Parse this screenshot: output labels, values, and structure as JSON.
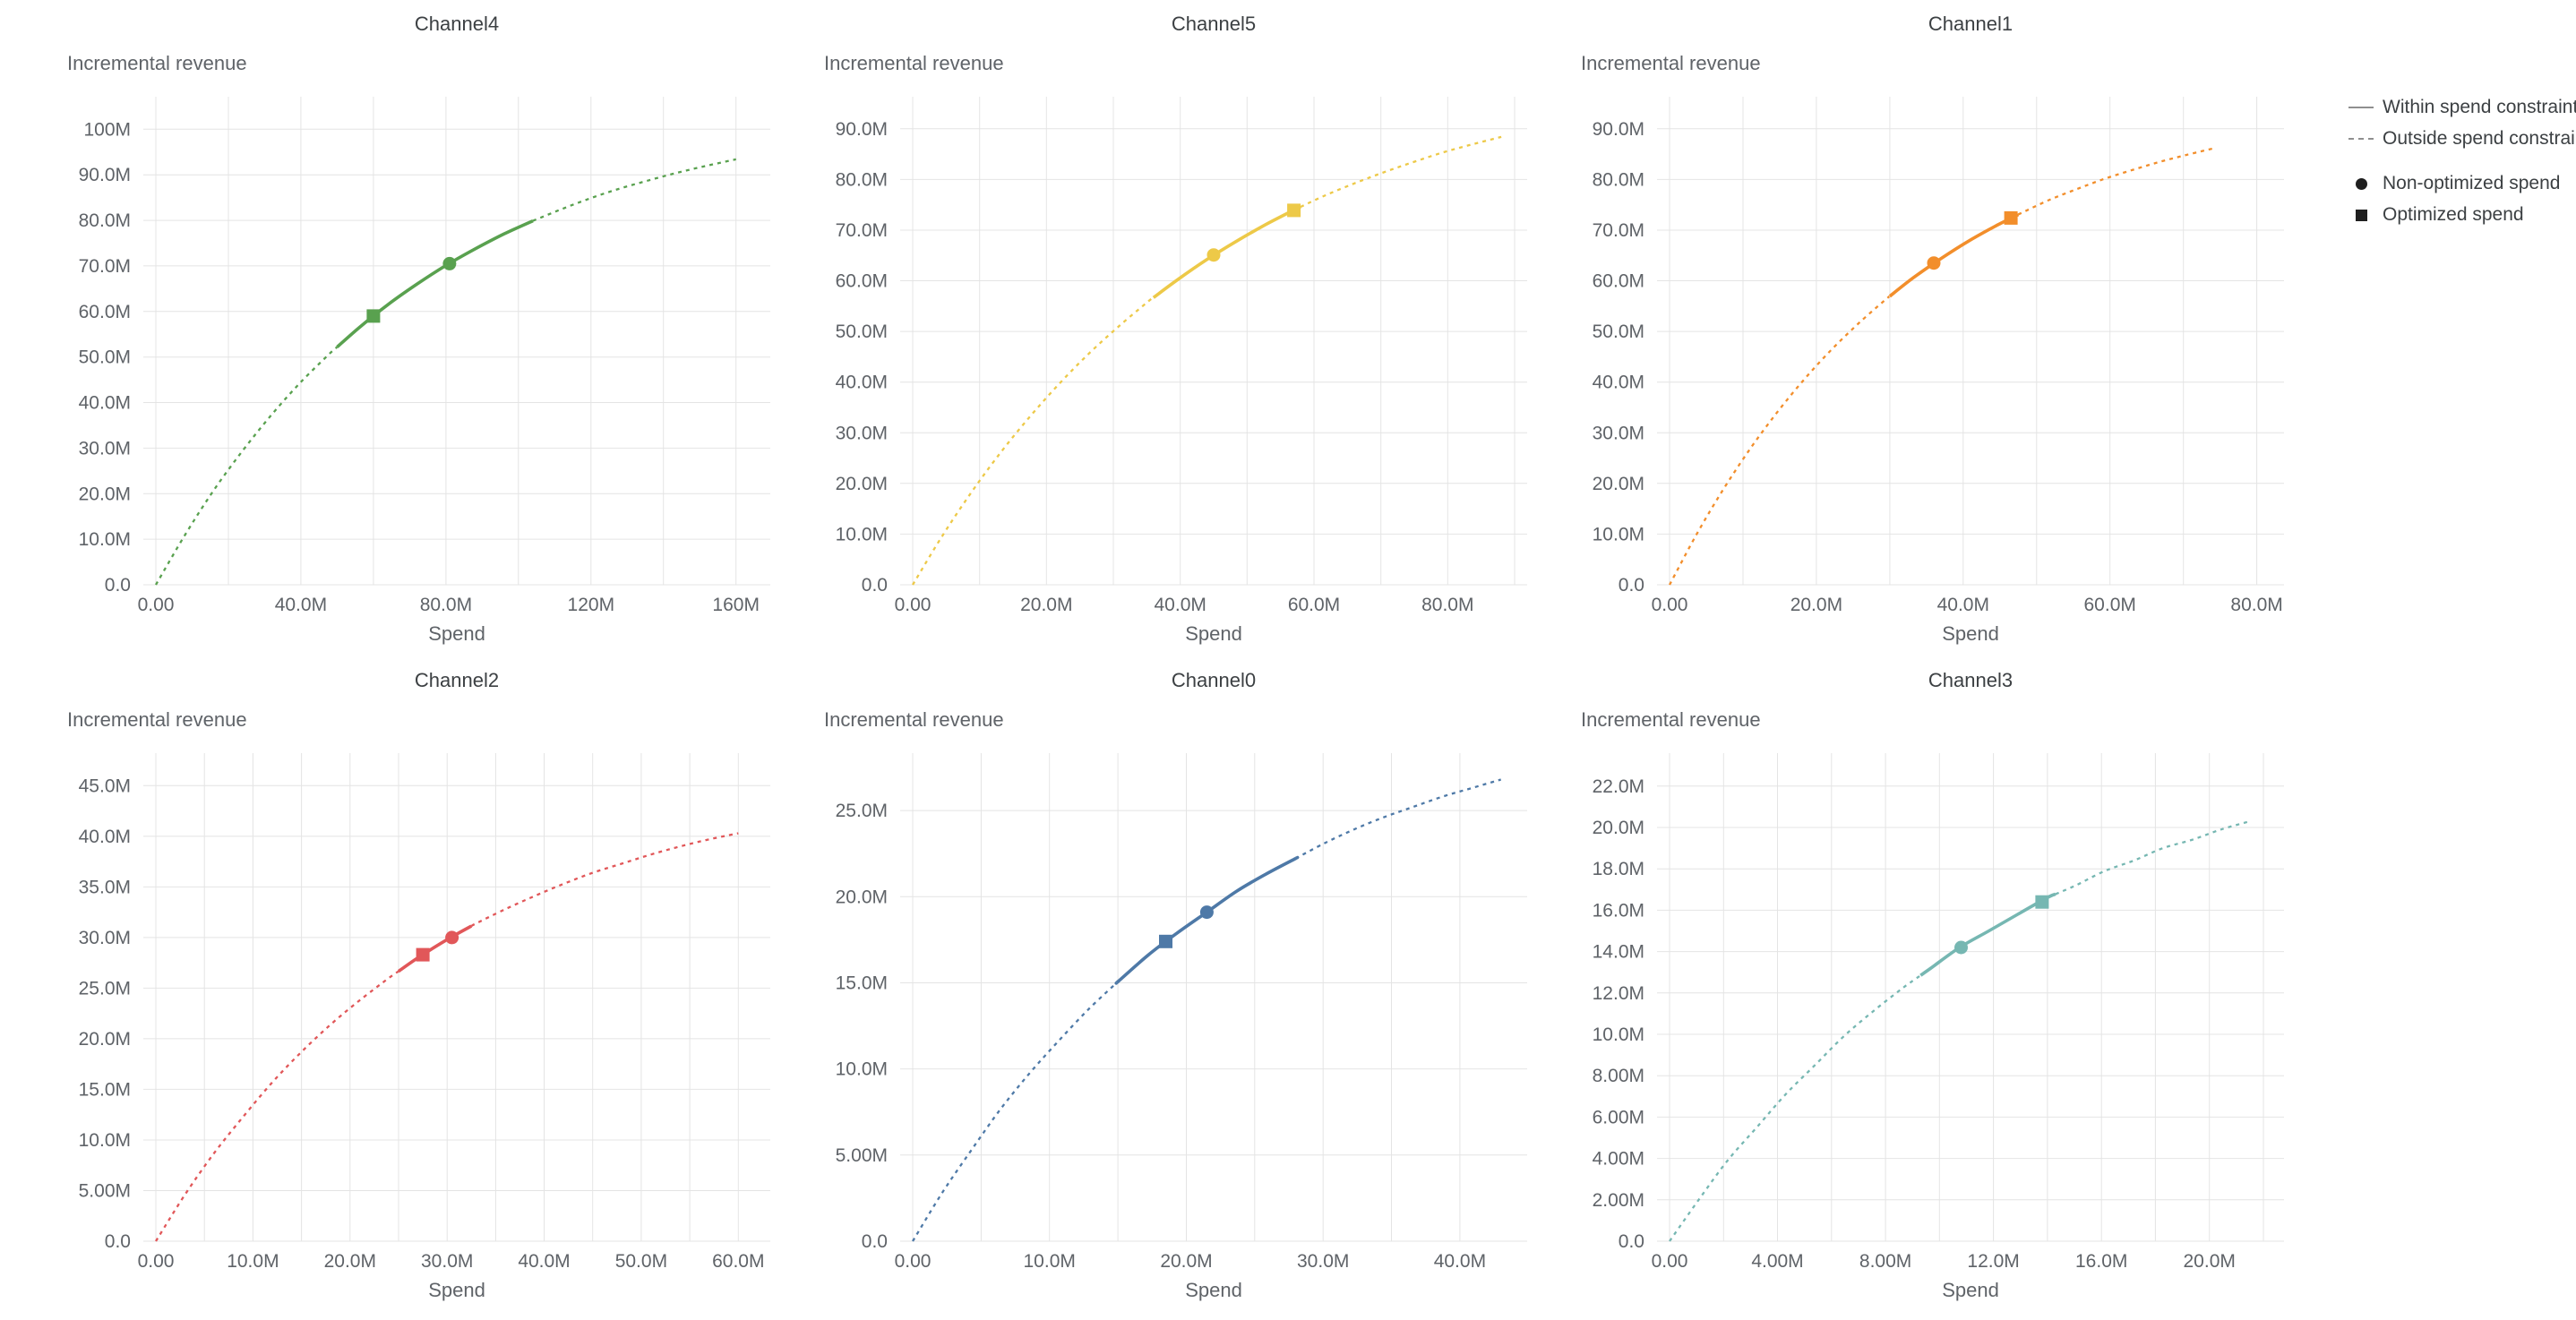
{
  "page": {
    "background": "#ffffff"
  },
  "legend": {
    "line_color": "#8f8f8f",
    "marker_color": "#1f1f1f",
    "text_color": "#3c4043",
    "items": [
      {
        "symbol": "line-solid",
        "label": "Within spend constraint"
      },
      {
        "symbol": "line-dashed",
        "label": "Outside spend constraint"
      },
      {
        "symbol": "circle",
        "label": "Non-optimized spend"
      },
      {
        "symbol": "square",
        "label": "Optimized spend"
      }
    ]
  },
  "chart_data": [
    {
      "type": "line",
      "title": "Channel4",
      "ylabel": "Incremental revenue",
      "xlabel": "Spend",
      "color": "#59a14f",
      "x_domain_max": 166,
      "y_domain_max": 104,
      "x_grid_step": 20,
      "x_ticks": [
        {
          "v": 0,
          "label": "0.00"
        },
        {
          "v": 40,
          "label": "40.0M"
        },
        {
          "v": 80,
          "label": "80.0M"
        },
        {
          "v": 120,
          "label": "120M"
        },
        {
          "v": 160,
          "label": "160M"
        }
      ],
      "y_ticks": [
        {
          "v": 0,
          "label": "0.0"
        },
        {
          "v": 10,
          "label": "10.0M"
        },
        {
          "v": 20,
          "label": "20.0M"
        },
        {
          "v": 30,
          "label": "30.0M"
        },
        {
          "v": 40,
          "label": "40.0M"
        },
        {
          "v": 50,
          "label": "50.0M"
        },
        {
          "v": 60,
          "label": "60.0M"
        },
        {
          "v": 70,
          "label": "70.0M"
        },
        {
          "v": 80,
          "label": "80.0M"
        },
        {
          "v": 90,
          "label": "90.0M"
        },
        {
          "v": 100,
          "label": "100M"
        }
      ],
      "solid_x_range": [
        50,
        104
      ],
      "markers": {
        "optimized": {
          "x": 60,
          "y": 59.0
        },
        "non_optimized": {
          "x": 81,
          "y": 70.5
        }
      },
      "curve_points": [
        [
          0,
          0
        ],
        [
          8,
          10.9
        ],
        [
          16,
          20.8
        ],
        [
          24,
          29.5
        ],
        [
          32,
          37.4
        ],
        [
          40,
          44.5
        ],
        [
          48,
          50.8
        ],
        [
          56,
          56.4
        ],
        [
          64,
          61.5
        ],
        [
          72,
          66.0
        ],
        [
          80,
          70.1
        ],
        [
          88,
          73.7
        ],
        [
          96,
          77.0
        ],
        [
          104,
          79.9
        ],
        [
          112,
          82.5
        ],
        [
          120,
          84.9
        ],
        [
          128,
          87.0
        ],
        [
          136,
          88.8
        ],
        [
          144,
          90.5
        ],
        [
          152,
          92.0
        ],
        [
          160,
          93.4
        ]
      ]
    },
    {
      "type": "line",
      "title": "Channel5",
      "ylabel": "Incremental revenue",
      "xlabel": "Spend",
      "color": "#edc948",
      "x_domain_max": 90,
      "y_domain_max": 93.5,
      "x_grid_step": 10,
      "x_ticks": [
        {
          "v": 0,
          "label": "0.00"
        },
        {
          "v": 20,
          "label": "20.0M"
        },
        {
          "v": 40,
          "label": "40.0M"
        },
        {
          "v": 60,
          "label": "60.0M"
        },
        {
          "v": 80,
          "label": "80.0M"
        }
      ],
      "y_ticks": [
        {
          "v": 0,
          "label": "0.0"
        },
        {
          "v": 10,
          "label": "10.0M"
        },
        {
          "v": 20,
          "label": "20.0M"
        },
        {
          "v": 30,
          "label": "30.0M"
        },
        {
          "v": 40,
          "label": "40.0M"
        },
        {
          "v": 50,
          "label": "50.0M"
        },
        {
          "v": 60,
          "label": "60.0M"
        },
        {
          "v": 70,
          "label": "70.0M"
        },
        {
          "v": 80,
          "label": "80.0M"
        },
        {
          "v": 90,
          "label": "90.0M"
        }
      ],
      "solid_x_range": [
        36,
        58
      ],
      "markers": {
        "non_optimized": {
          "x": 45,
          "y": 65.1
        },
        "optimized": {
          "x": 57,
          "y": 73.9
        }
      },
      "curve_points": [
        [
          0,
          0
        ],
        [
          4.4,
          9.6
        ],
        [
          8.8,
          18.3
        ],
        [
          13.2,
          26.2
        ],
        [
          17.6,
          33.3
        ],
        [
          22,
          39.8
        ],
        [
          26.4,
          45.7
        ],
        [
          30.8,
          51.0
        ],
        [
          35.2,
          55.9
        ],
        [
          39.6,
          60.2
        ],
        [
          44,
          64.2
        ],
        [
          48.4,
          67.8
        ],
        [
          52.8,
          71.1
        ],
        [
          57.2,
          74.1
        ],
        [
          61.6,
          76.8
        ],
        [
          66,
          79.2
        ],
        [
          70.4,
          81.4
        ],
        [
          74.8,
          83.4
        ],
        [
          79.2,
          85.3
        ],
        [
          83.6,
          86.9
        ],
        [
          88,
          88.4
        ]
      ]
    },
    {
      "type": "line",
      "title": "Channel1",
      "ylabel": "Incremental revenue",
      "xlabel": "Spend",
      "color": "#f28e2b",
      "x_domain_max": 82,
      "y_domain_max": 93.5,
      "x_grid_step": 10,
      "x_ticks": [
        {
          "v": 0,
          "label": "0.00"
        },
        {
          "v": 20,
          "label": "20.0M"
        },
        {
          "v": 40,
          "label": "40.0M"
        },
        {
          "v": 60,
          "label": "60.0M"
        },
        {
          "v": 80,
          "label": "80.0M"
        }
      ],
      "y_ticks": [
        {
          "v": 0,
          "label": "0.0"
        },
        {
          "v": 10,
          "label": "10.0M"
        },
        {
          "v": 20,
          "label": "20.0M"
        },
        {
          "v": 30,
          "label": "30.0M"
        },
        {
          "v": 40,
          "label": "40.0M"
        },
        {
          "v": 50,
          "label": "50.0M"
        },
        {
          "v": 60,
          "label": "60.0M"
        },
        {
          "v": 70,
          "label": "70.0M"
        },
        {
          "v": 80,
          "label": "80.0M"
        },
        {
          "v": 90,
          "label": "90.0M"
        }
      ],
      "solid_x_range": [
        30,
        47.5
      ],
      "markers": {
        "non_optimized": {
          "x": 36,
          "y": 63.5
        },
        "optimized": {
          "x": 46.5,
          "y": 72.4
        }
      },
      "curve_points": [
        [
          0,
          0
        ],
        [
          3.7,
          10.0
        ],
        [
          7.4,
          19.0
        ],
        [
          11.1,
          27.1
        ],
        [
          14.8,
          34.3
        ],
        [
          18.5,
          40.8
        ],
        [
          22.2,
          46.6
        ],
        [
          25.9,
          51.8
        ],
        [
          29.6,
          56.5
        ],
        [
          33.3,
          60.7
        ],
        [
          37,
          64.4
        ],
        [
          40.7,
          67.8
        ],
        [
          44.4,
          70.8
        ],
        [
          48.1,
          73.5
        ],
        [
          51.8,
          76.0
        ],
        [
          55.5,
          78.1
        ],
        [
          59.2,
          80.1
        ],
        [
          62.9,
          81.8
        ],
        [
          66.6,
          83.4
        ],
        [
          70.3,
          84.8
        ],
        [
          74,
          86.1
        ]
      ]
    },
    {
      "type": "line",
      "title": "Channel2",
      "ylabel": "Incremental revenue",
      "xlabel": "Spend",
      "color": "#e15759",
      "x_domain_max": 62,
      "y_domain_max": 46.8,
      "x_grid_step": 5,
      "x_ticks": [
        {
          "v": 0,
          "label": "0.00"
        },
        {
          "v": 10,
          "label": "10.0M"
        },
        {
          "v": 20,
          "label": "20.0M"
        },
        {
          "v": 30,
          "label": "30.0M"
        },
        {
          "v": 40,
          "label": "40.0M"
        },
        {
          "v": 50,
          "label": "50.0M"
        },
        {
          "v": 60,
          "label": "60.0M"
        }
      ],
      "y_ticks": [
        {
          "v": 0,
          "label": "0.0"
        },
        {
          "v": 5,
          "label": "5.00M"
        },
        {
          "v": 10,
          "label": "10.0M"
        },
        {
          "v": 15,
          "label": "15.0M"
        },
        {
          "v": 20,
          "label": "20.0M"
        },
        {
          "v": 25,
          "label": "25.0M"
        },
        {
          "v": 30,
          "label": "30.0M"
        },
        {
          "v": 35,
          "label": "35.0M"
        },
        {
          "v": 40,
          "label": "40.0M"
        },
        {
          "v": 45,
          "label": "45.0M"
        }
      ],
      "solid_x_range": [
        25,
        32.5
      ],
      "markers": {
        "optimized": {
          "x": 27.5,
          "y": 28.3
        },
        "non_optimized": {
          "x": 30.5,
          "y": 30.0
        }
      },
      "curve_points": [
        [
          0,
          0
        ],
        [
          3,
          4.6
        ],
        [
          6,
          8.7
        ],
        [
          9,
          12.3
        ],
        [
          12,
          15.7
        ],
        [
          15,
          18.7
        ],
        [
          18,
          21.4
        ],
        [
          21,
          23.8
        ],
        [
          24,
          26.0
        ],
        [
          27,
          28.0
        ],
        [
          30,
          29.8
        ],
        [
          33,
          31.4
        ],
        [
          36,
          32.8
        ],
        [
          39,
          34.1
        ],
        [
          42,
          35.3
        ],
        [
          45,
          36.4
        ],
        [
          48,
          37.3
        ],
        [
          51,
          38.2
        ],
        [
          54,
          39.0
        ],
        [
          57,
          39.7
        ],
        [
          60,
          40.3
        ]
      ]
    },
    {
      "type": "line",
      "title": "Channel0",
      "ylabel": "Incremental revenue",
      "xlabel": "Spend",
      "color": "#4e79a7",
      "x_domain_max": 44,
      "y_domain_max": 27.5,
      "x_grid_step": 5,
      "x_ticks": [
        {
          "v": 0,
          "label": "0.00"
        },
        {
          "v": 10,
          "label": "10.0M"
        },
        {
          "v": 20,
          "label": "20.0M"
        },
        {
          "v": 30,
          "label": "30.0M"
        },
        {
          "v": 40,
          "label": "40.0M"
        }
      ],
      "y_ticks": [
        {
          "v": 0,
          "label": "0.0"
        },
        {
          "v": 5,
          "label": "5.00M"
        },
        {
          "v": 10,
          "label": "10.0M"
        },
        {
          "v": 15,
          "label": "15.0M"
        },
        {
          "v": 20,
          "label": "20.0M"
        },
        {
          "v": 25,
          "label": "25.0M"
        }
      ],
      "solid_x_range": [
        15,
        28
      ],
      "markers": {
        "optimized": {
          "x": 18.5,
          "y": 17.4
        },
        "non_optimized": {
          "x": 21.5,
          "y": 19.1
        }
      },
      "curve_points": [
        [
          0,
          0
        ],
        [
          2.15,
          2.8
        ],
        [
          4.3,
          5.3
        ],
        [
          6.45,
          7.7
        ],
        [
          8.6,
          9.8
        ],
        [
          10.75,
          11.7
        ],
        [
          12.9,
          13.5
        ],
        [
          15.05,
          15.1
        ],
        [
          17.2,
          16.6
        ],
        [
          19.35,
          17.9
        ],
        [
          21.5,
          19.1
        ],
        [
          23.65,
          20.3
        ],
        [
          25.8,
          21.3
        ],
        [
          27.95,
          22.2
        ],
        [
          30.1,
          23.1
        ],
        [
          32.25,
          23.9
        ],
        [
          34.4,
          24.6
        ],
        [
          36.55,
          25.2
        ],
        [
          38.7,
          25.8
        ],
        [
          40.85,
          26.3
        ],
        [
          43,
          26.8
        ]
      ]
    },
    {
      "type": "line",
      "title": "Channel3",
      "ylabel": "Incremental revenue",
      "xlabel": "Spend",
      "color": "#76b7b2",
      "x_domain_max": 22.3,
      "y_domain_max": 22.9,
      "x_grid_step": 2,
      "x_ticks": [
        {
          "v": 0,
          "label": "0.00"
        },
        {
          "v": 4,
          "label": "4.00M"
        },
        {
          "v": 8,
          "label": "8.00M"
        },
        {
          "v": 12,
          "label": "12.0M"
        },
        {
          "v": 16,
          "label": "16.0M"
        },
        {
          "v": 20,
          "label": "20.0M"
        }
      ],
      "y_ticks": [
        {
          "v": 0,
          "label": "0.0"
        },
        {
          "v": 2,
          "label": "2.00M"
        },
        {
          "v": 4,
          "label": "4.00M"
        },
        {
          "v": 6,
          "label": "6.00M"
        },
        {
          "v": 8,
          "label": "8.00M"
        },
        {
          "v": 10,
          "label": "10.0M"
        },
        {
          "v": 12,
          "label": "12.0M"
        },
        {
          "v": 14,
          "label": "14.0M"
        },
        {
          "v": 16,
          "label": "16.0M"
        },
        {
          "v": 18,
          "label": "18.0M"
        },
        {
          "v": 20,
          "label": "20.0M"
        },
        {
          "v": 22,
          "label": "22.0M"
        }
      ],
      "solid_x_range": [
        9.3,
        14.3
      ],
      "markers": {
        "non_optimized": {
          "x": 10.8,
          "y": 14.2
        },
        "optimized": {
          "x": 13.8,
          "y": 16.4
        }
      },
      "curve_points": [
        [
          0,
          0
        ],
        [
          1.08,
          2.0
        ],
        [
          2.15,
          3.9
        ],
        [
          3.23,
          5.5
        ],
        [
          4.3,
          7.1
        ],
        [
          5.38,
          8.5
        ],
        [
          6.45,
          9.9
        ],
        [
          7.53,
          11.1
        ],
        [
          8.6,
          12.2
        ],
        [
          9.68,
          13.2
        ],
        [
          10.75,
          14.2
        ],
        [
          11.83,
          15.0
        ],
        [
          12.9,
          15.8
        ],
        [
          13.98,
          16.6
        ],
        [
          15.05,
          17.2
        ],
        [
          16.13,
          17.9
        ],
        [
          17.2,
          18.4
        ],
        [
          18.28,
          19.0
        ],
        [
          19.35,
          19.4
        ],
        [
          20.43,
          19.9
        ],
        [
          21.5,
          20.3
        ]
      ]
    }
  ]
}
